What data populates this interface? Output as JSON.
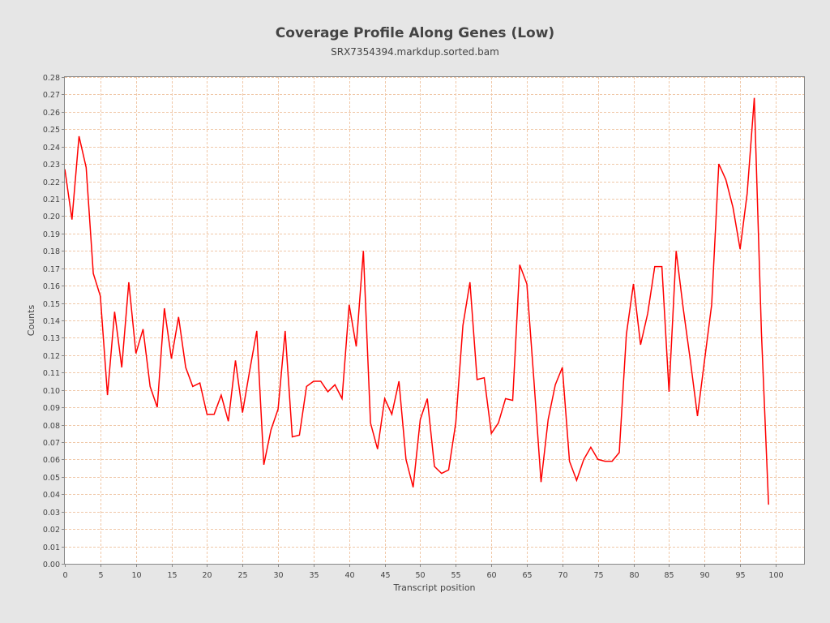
{
  "chart_data": {
    "type": "line",
    "title": "Coverage Profile Along Genes (Low)",
    "subtitle": "SRX7354394.markdup.sorted.bam",
    "xlabel": "Transcript position",
    "ylabel": "Counts",
    "xlim": [
      0,
      104
    ],
    "ylim": [
      0,
      0.28
    ],
    "xticks": [
      "0",
      "5",
      "10",
      "15",
      "20",
      "25",
      "30",
      "35",
      "40",
      "45",
      "50",
      "55",
      "60",
      "65",
      "70",
      "75",
      "80",
      "85",
      "90",
      "95",
      "100"
    ],
    "yticks": [
      "0.00",
      "0.01",
      "0.02",
      "0.03",
      "0.04",
      "0.05",
      "0.06",
      "0.07",
      "0.08",
      "0.09",
      "0.10",
      "0.11",
      "0.12",
      "0.13",
      "0.14",
      "0.15",
      "0.16",
      "0.17",
      "0.18",
      "0.19",
      "0.20",
      "0.21",
      "0.22",
      "0.23",
      "0.24",
      "0.25",
      "0.26",
      "0.27",
      "0.28"
    ],
    "grid": true,
    "series": [
      {
        "name": "Counts",
        "color": "#ff0000",
        "values": [
          0.227,
          0.198,
          0.246,
          0.228,
          0.167,
          0.154,
          0.097,
          0.145,
          0.113,
          0.162,
          0.121,
          0.135,
          0.102,
          0.09,
          0.147,
          0.118,
          0.142,
          0.113,
          0.102,
          0.104,
          0.086,
          0.086,
          0.097,
          0.082,
          0.117,
          0.087,
          0.111,
          0.134,
          0.057,
          0.077,
          0.089,
          0.134,
          0.073,
          0.074,
          0.102,
          0.105,
          0.105,
          0.099,
          0.103,
          0.095,
          0.149,
          0.125,
          0.18,
          0.081,
          0.066,
          0.095,
          0.086,
          0.105,
          0.06,
          0.044,
          0.083,
          0.095,
          0.056,
          0.052,
          0.054,
          0.081,
          0.137,
          0.162,
          0.106,
          0.107,
          0.075,
          0.081,
          0.095,
          0.094,
          0.172,
          0.161,
          0.105,
          0.047,
          0.083,
          0.103,
          0.113,
          0.059,
          0.048,
          0.06,
          0.067,
          0.06,
          0.059,
          0.059,
          0.064,
          0.132,
          0.161,
          0.126,
          0.144,
          0.171,
          0.171,
          0.099,
          0.18,
          0.147,
          0.117,
          0.085,
          0.117,
          0.149,
          0.23,
          0.221,
          0.205,
          0.181,
          0.213,
          0.268,
          0.133,
          0.034
        ]
      }
    ]
  }
}
